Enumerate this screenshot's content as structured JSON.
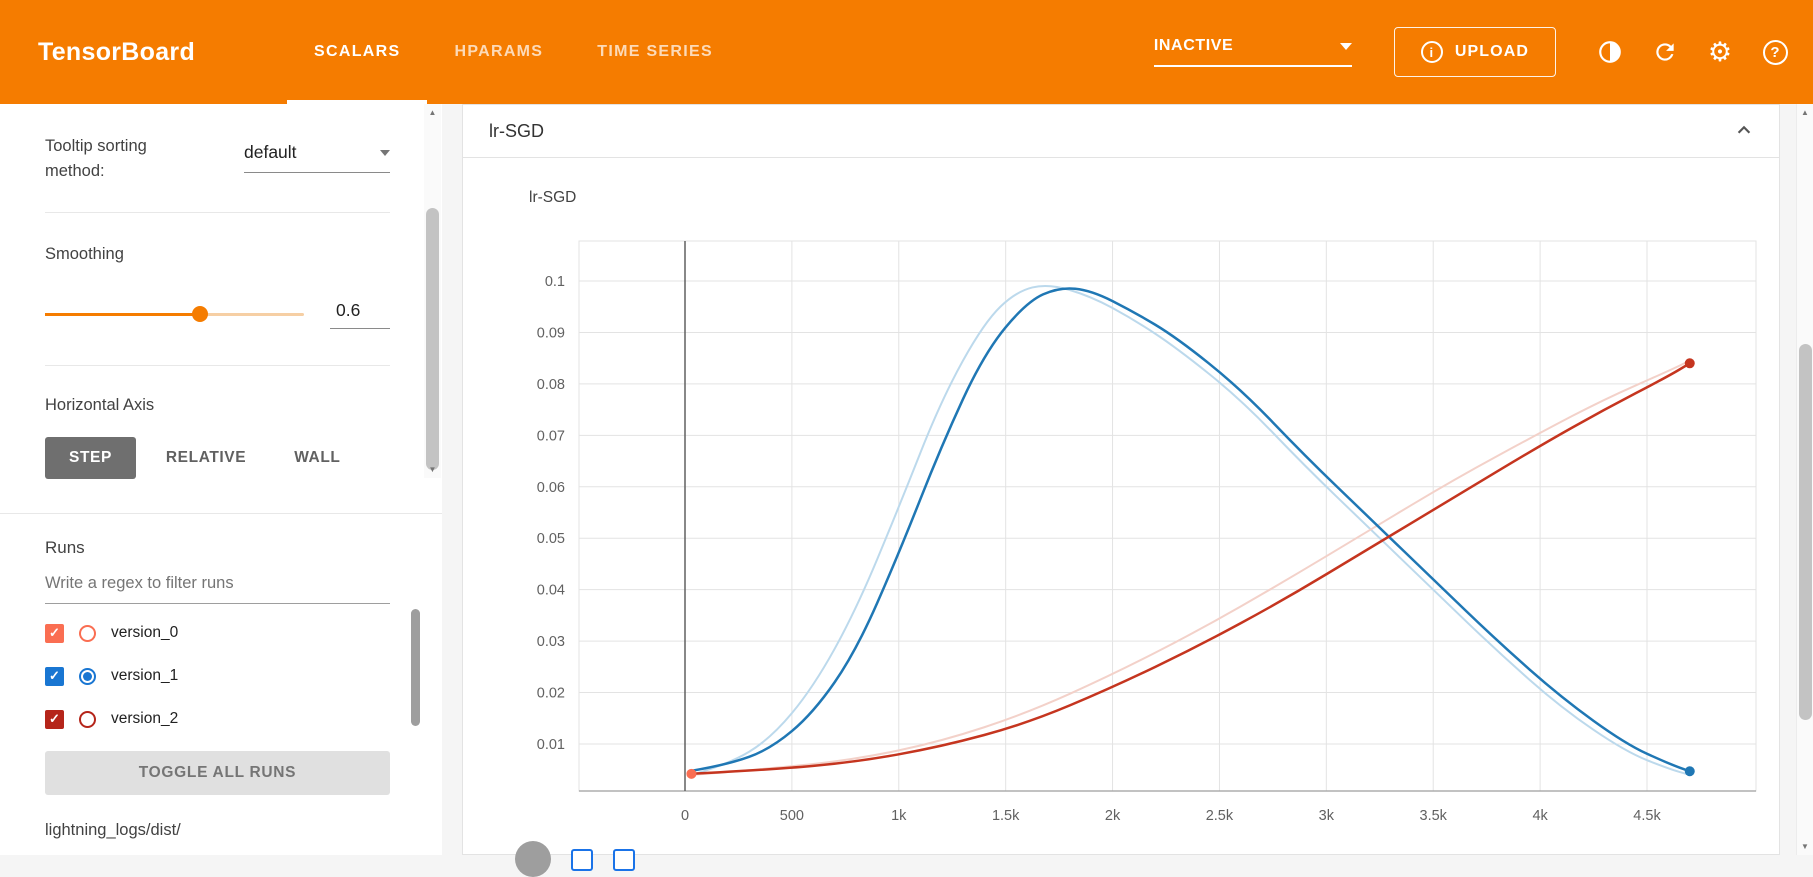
{
  "header": {
    "logo": "TensorBoard",
    "tabs": [
      {
        "label": "SCALARS",
        "active": true
      },
      {
        "label": "HPARAMS",
        "active": false
      },
      {
        "label": "TIME SERIES",
        "active": false
      }
    ],
    "status_dropdown": "INACTIVE",
    "upload_label": "UPLOAD",
    "colors": {
      "bar": "#f57c00"
    }
  },
  "icons": {
    "info": "i",
    "gear": "⚙",
    "help": "?",
    "check": "✓",
    "scroll_up": "▲",
    "scroll_down": "▼"
  },
  "sidebar": {
    "tooltip_sorting": {
      "label": "Tooltip sorting method:",
      "value": "default"
    },
    "smoothing": {
      "label": "Smoothing",
      "value": "0.6",
      "percent": 60
    },
    "horizontal_axis": {
      "label": "Horizontal Axis",
      "options": [
        "STEP",
        "RELATIVE",
        "WALL"
      ],
      "selected": "STEP"
    },
    "runs": {
      "title": "Runs",
      "filter_placeholder": "Write a regex to filter runs",
      "items": [
        {
          "name": "version_0",
          "color": "#fa6e52",
          "checked": true,
          "radio_selected": false
        },
        {
          "name": "version_1",
          "color": "#1976d2",
          "checked": true,
          "radio_selected": true
        },
        {
          "name": "version_2",
          "color": "#b5251a",
          "checked": true,
          "radio_selected": false
        }
      ],
      "toggle_all_label": "TOGGLE ALL RUNS",
      "footer_path": "lightning_logs/dist/"
    }
  },
  "card": {
    "title": "lr-SGD"
  },
  "chart_data": {
    "type": "line",
    "title": "lr-SGD",
    "xlim": [
      -500,
      5000
    ],
    "ylim": [
      0.0009,
      0.108
    ],
    "grid": true,
    "zero_line_x": 0,
    "x_ticks": [
      {
        "value": 0,
        "label": "0"
      },
      {
        "value": 500,
        "label": "500"
      },
      {
        "value": 1000,
        "label": "1k"
      },
      {
        "value": 1500,
        "label": "1.5k"
      },
      {
        "value": 2000,
        "label": "2k"
      },
      {
        "value": 2500,
        "label": "2.5k"
      },
      {
        "value": 3000,
        "label": "3k"
      },
      {
        "value": 3500,
        "label": "3.5k"
      },
      {
        "value": 4000,
        "label": "4k"
      },
      {
        "value": 4500,
        "label": "4.5k"
      }
    ],
    "y_ticks": [
      {
        "value": 0.01,
        "label": "0.01"
      },
      {
        "value": 0.02,
        "label": "0.02"
      },
      {
        "value": 0.03,
        "label": "0.03"
      },
      {
        "value": 0.04,
        "label": "0.04"
      },
      {
        "value": 0.05,
        "label": "0.05"
      },
      {
        "value": 0.06,
        "label": "0.06"
      },
      {
        "value": 0.07,
        "label": "0.07"
      },
      {
        "value": 0.08,
        "label": "0.08"
      },
      {
        "value": 0.09,
        "label": "0.09"
      },
      {
        "value": 0.1,
        "label": "0.1"
      }
    ],
    "series": [
      {
        "name": "version_1 (raw)",
        "run": "version_1",
        "smoothed": false,
        "color": "#bcd9ec",
        "width": 2,
        "points": [
          [
            30,
            0.004
          ],
          [
            200,
            0.006
          ],
          [
            400,
            0.011
          ],
          [
            600,
            0.021
          ],
          [
            800,
            0.036
          ],
          [
            1000,
            0.056
          ],
          [
            1200,
            0.077
          ],
          [
            1400,
            0.092
          ],
          [
            1550,
            0.098
          ],
          [
            1700,
            0.0995
          ],
          [
            1900,
            0.097
          ],
          [
            2100,
            0.0925
          ],
          [
            2300,
            0.087
          ],
          [
            2600,
            0.077
          ],
          [
            2900,
            0.064
          ],
          [
            3200,
            0.052
          ],
          [
            3500,
            0.04
          ],
          [
            3800,
            0.028
          ],
          [
            4100,
            0.017
          ],
          [
            4400,
            0.0085
          ],
          [
            4600,
            0.0052
          ],
          [
            4700,
            0.004
          ]
        ]
      },
      {
        "name": "version_2 (raw)",
        "run": "version_2",
        "smoothed": false,
        "color": "#f3d1c9",
        "width": 2,
        "points": [
          [
            30,
            0.004
          ],
          [
            400,
            0.0052
          ],
          [
            800,
            0.007
          ],
          [
            1200,
            0.0105
          ],
          [
            1600,
            0.016
          ],
          [
            2000,
            0.0235
          ],
          [
            2400,
            0.032
          ],
          [
            2800,
            0.0415
          ],
          [
            3200,
            0.0515
          ],
          [
            3600,
            0.0615
          ],
          [
            4000,
            0.0705
          ],
          [
            4300,
            0.077
          ],
          [
            4600,
            0.0825
          ],
          [
            4700,
            0.0845
          ]
        ]
      },
      {
        "name": "version_1 (smoothed 0.6)",
        "run": "version_1",
        "smoothed": true,
        "color": "#1f77b4",
        "width": 2.5,
        "points": [
          [
            30,
            0.0048
          ],
          [
            200,
            0.006
          ],
          [
            400,
            0.009
          ],
          [
            600,
            0.016
          ],
          [
            800,
            0.028
          ],
          [
            1000,
            0.047
          ],
          [
            1200,
            0.068
          ],
          [
            1400,
            0.086
          ],
          [
            1600,
            0.096
          ],
          [
            1750,
            0.0988
          ],
          [
            1900,
            0.0982
          ],
          [
            2100,
            0.094
          ],
          [
            2300,
            0.089
          ],
          [
            2600,
            0.079
          ],
          [
            2900,
            0.066
          ],
          [
            3200,
            0.054
          ],
          [
            3500,
            0.042
          ],
          [
            3800,
            0.03
          ],
          [
            4100,
            0.019
          ],
          [
            4400,
            0.01
          ],
          [
            4600,
            0.0062
          ],
          [
            4700,
            0.0047
          ]
        ]
      },
      {
        "name": "version_2 (smoothed 0.6)",
        "run": "version_2",
        "smoothed": true,
        "color": "#c5351f",
        "width": 2.5,
        "points": [
          [
            30,
            0.0042
          ],
          [
            400,
            0.005
          ],
          [
            800,
            0.0065
          ],
          [
            1200,
            0.0095
          ],
          [
            1600,
            0.014
          ],
          [
            2000,
            0.021
          ],
          [
            2400,
            0.029
          ],
          [
            2800,
            0.038
          ],
          [
            3200,
            0.048
          ],
          [
            3600,
            0.058
          ],
          [
            4000,
            0.068
          ],
          [
            4300,
            0.075
          ],
          [
            4600,
            0.0815
          ],
          [
            4700,
            0.084
          ]
        ]
      }
    ],
    "markers": [
      {
        "run": "version_0",
        "x": 30,
        "y": 0.0042,
        "color": "#fa6e52"
      },
      {
        "run": "version_2",
        "x": 4700,
        "y": 0.084,
        "color": "#c5351f"
      },
      {
        "run": "version_1",
        "x": 4700,
        "y": 0.0047,
        "color": "#1f77b4"
      }
    ]
  }
}
